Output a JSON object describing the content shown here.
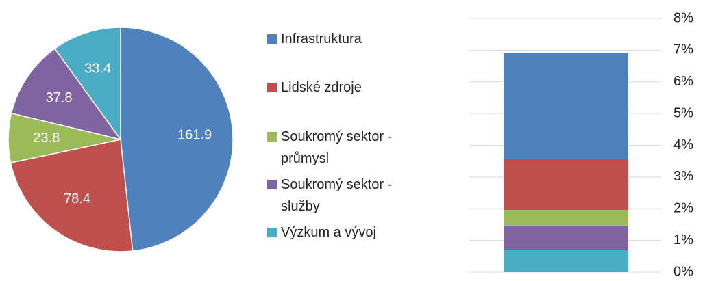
{
  "chart_data": [
    {
      "type": "pie",
      "categories": [
        "Infrastruktura",
        "Lidské zdroje",
        "Soukromý sektor - průmysl",
        "Soukromý sektor - služby",
        "Výzkum a vývoj"
      ],
      "values": [
        161.9,
        78.4,
        23.8,
        37.8,
        33.4
      ],
      "colors": [
        "#4f81bd",
        "#c0504d",
        "#9bbb59",
        "#8064a2",
        "#4bacc6"
      ],
      "legend": "right"
    },
    {
      "type": "bar",
      "stacked": true,
      "categories": [
        null
      ],
      "series": [
        {
          "color": "#4bacc6",
          "values": [
            0.69
          ]
        },
        {
          "color": "#8064a2",
          "values": [
            0.78
          ]
        },
        {
          "color": "#9bbb59",
          "values": [
            0.49
          ]
        },
        {
          "color": "#c0504d",
          "values": [
            1.61
          ]
        },
        {
          "color": "#4f81bd",
          "values": [
            3.33
          ]
        }
      ],
      "ylim": [
        0,
        8
      ],
      "yticks": [
        {
          "value": 0,
          "label": "0%"
        },
        {
          "value": 1,
          "label": "1%"
        },
        {
          "value": 2,
          "label": "2%"
        },
        {
          "value": 3,
          "label": "3%"
        },
        {
          "value": 4,
          "label": "4%"
        },
        {
          "value": 5,
          "label": "5%"
        },
        {
          "value": 6,
          "label": "6%"
        },
        {
          "value": 7,
          "label": "7%"
        },
        {
          "value": 8,
          "label": "8%"
        }
      ],
      "grid": true
    }
  ]
}
